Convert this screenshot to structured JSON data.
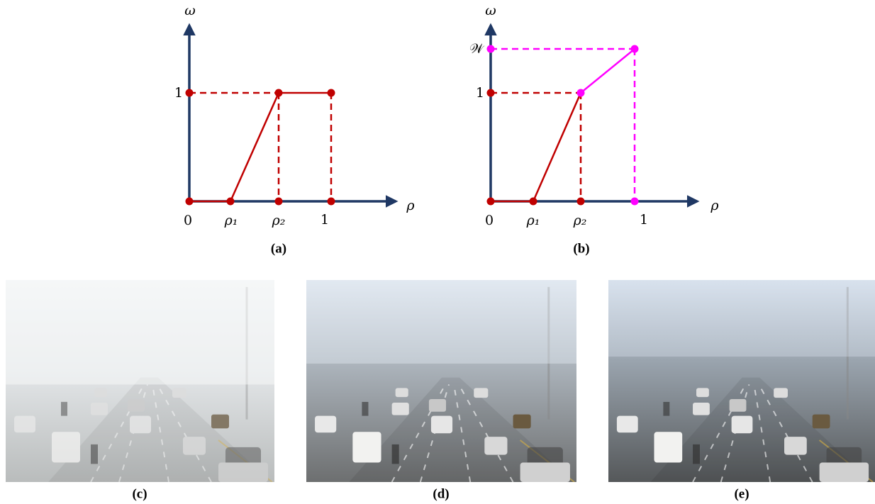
{
  "panels": [
    {
      "y_label": "ω",
      "x_label": "ρ",
      "y_ticks": [
        "1"
      ],
      "x_ticks": [
        "0",
        "ρ₁",
        "ρ₂",
        "1"
      ],
      "caption": "(a)"
    },
    {
      "y_label": "ω",
      "x_label": "ρ",
      "y_ticks": [
        "𝒲",
        "1"
      ],
      "x_ticks": [
        "0",
        "ρ₁",
        "ρ₂",
        "1"
      ],
      "caption": "(b)"
    }
  ],
  "images": [
    {
      "caption": "(c)"
    },
    {
      "caption": "(d)"
    },
    {
      "caption": "(e)"
    }
  ]
}
